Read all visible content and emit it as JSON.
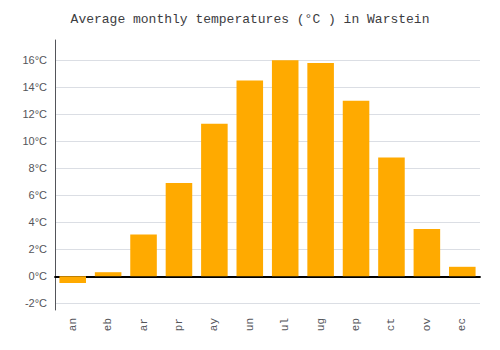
{
  "chart_data": {
    "type": "bar",
    "title": "Average monthly temperatures (°C ) in Warstein",
    "categories": [
      "an",
      "eb",
      "ar",
      "pr",
      "ay",
      "un",
      "ul",
      "ug",
      "ep",
      "ct",
      "ov",
      "ec"
    ],
    "values": [
      -0.5,
      0.3,
      3.1,
      6.9,
      11.3,
      14.5,
      16.0,
      15.8,
      13.0,
      8.8,
      3.5,
      0.7
    ],
    "color": "#FFAA00",
    "ylim": [
      -2.5,
      17.5
    ],
    "yticks": [
      {
        "value": -2,
        "label": "-2°C"
      },
      {
        "value": 0,
        "label": "0°C"
      },
      {
        "value": 2,
        "label": "2°C"
      },
      {
        "value": 4,
        "label": "4°C"
      },
      {
        "value": 6,
        "label": "6°C"
      },
      {
        "value": 8,
        "label": "8°C"
      },
      {
        "value": 10,
        "label": "10°C"
      },
      {
        "value": 12,
        "label": "12°C"
      },
      {
        "value": 14,
        "label": "14°C"
      },
      {
        "value": 16,
        "label": "16°C"
      }
    ],
    "grid": true
  }
}
